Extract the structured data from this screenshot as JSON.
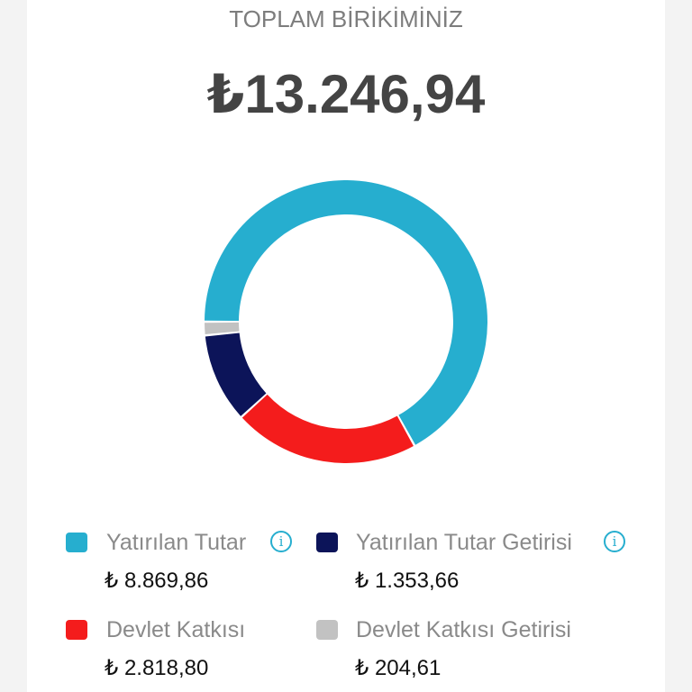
{
  "header": {
    "title": "TOPLAM BİRİKİMİNİZ",
    "total": "₺13.246,94"
  },
  "legend": [
    {
      "label": "Yatırılan Tutar",
      "value": "₺ 8.869,86",
      "color": "#26aecf",
      "info_icon": "info-icon",
      "info_glyph": "i"
    },
    {
      "label": "Yatırılan Tutar Getirisi",
      "value": "₺ 1.353,66",
      "color": "#0c1459",
      "info_icon": "info-icon",
      "info_glyph": "i"
    },
    {
      "label": "Devlet Katkısı",
      "value": "₺ 2.818,80",
      "color": "#f41c1c"
    },
    {
      "label": "Devlet Katkısı Getirisi",
      "value": "₺ 204,61",
      "color": "#c2c2c2"
    }
  ],
  "chart_data": {
    "type": "pie",
    "subtype": "donut",
    "title": "TOPLAM BİRİKİMİNİZ",
    "center_total": 13246.94,
    "currency": "₺",
    "categories": [
      "Yatırılan Tutar",
      "Devlet Katkısı",
      "Yatırılan Tutar Getirisi",
      "Devlet Katkısı Getirisi"
    ],
    "values": [
      8869.86,
      2818.8,
      1353.66,
      204.61
    ],
    "colors": [
      "#26aecf",
      "#f41c1c",
      "#0c1459",
      "#c2c2c2"
    ],
    "legend_position": "bottom",
    "start_angle_deg": 180,
    "direction": "clockwise"
  }
}
